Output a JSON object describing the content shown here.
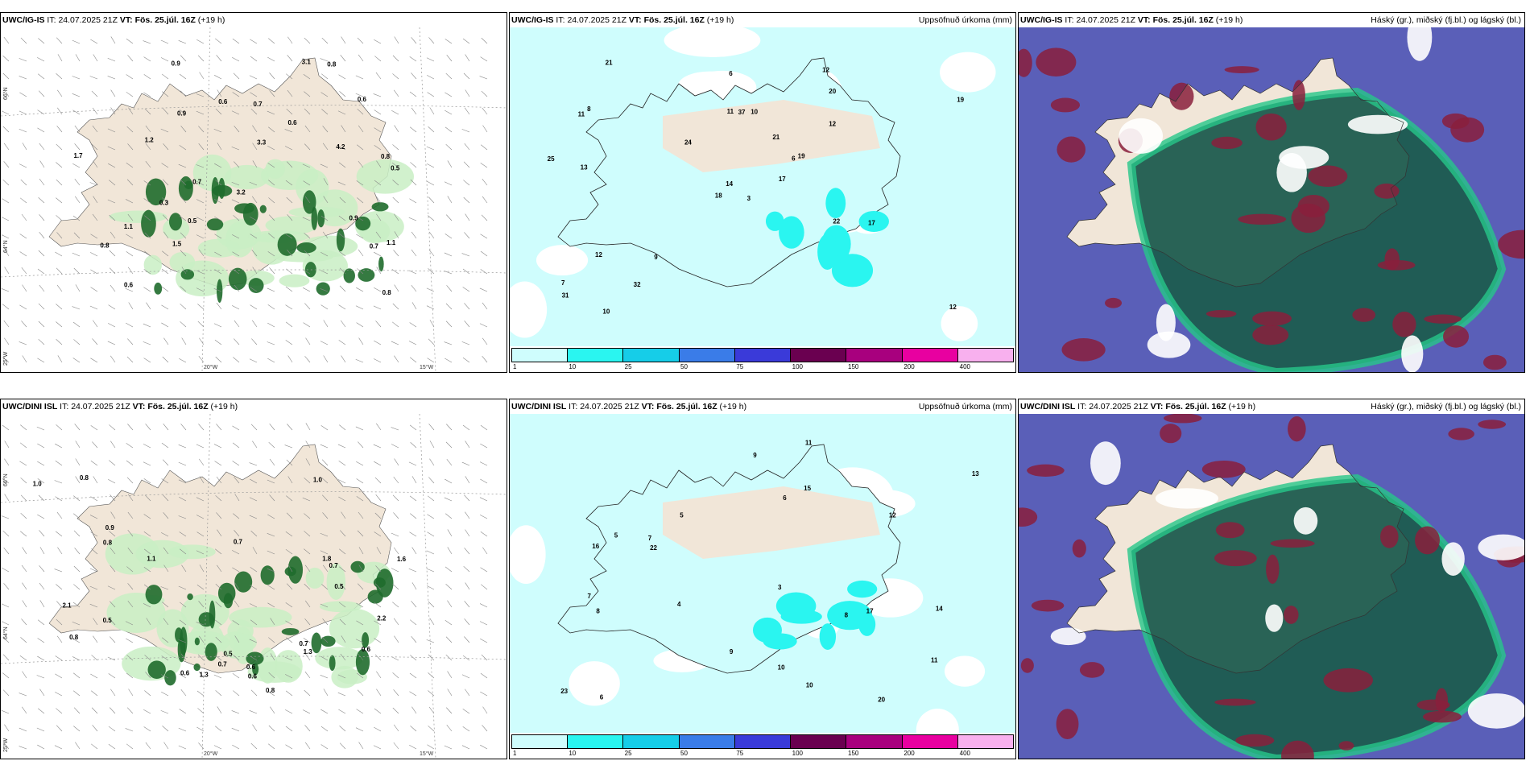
{
  "rows": [
    {
      "model": "UWC/IG-IS",
      "it_label": "IT:",
      "it": "24.07.2025 21Z",
      "vt_label": "VT:",
      "vt": "Fös. 25.júl. 16Z",
      "lead": "(+19 h)"
    },
    {
      "model": "UWC/DINI ISL",
      "it_label": "IT:",
      "it": "24.07.2025 21Z",
      "vt_label": "VT:",
      "vt": "Fös. 25.júl. 16Z",
      "lead": "(+19 h)"
    }
  ],
  "precip_title": "Uppsöfnuð úrkoma (mm)",
  "cloud_title": "Háský (gr.), miðský (fj.bl.) og lágský (bl.)",
  "colorbar": {
    "ticks": [
      "1",
      "10",
      "25",
      "50",
      "75",
      "100",
      "150",
      "200",
      "400"
    ],
    "colors": [
      "#cffdfd",
      "#2af5f0",
      "#16cde8",
      "#3a7ce8",
      "#3a3ad9",
      "#6a0050",
      "#a8007e",
      "#e800a0",
      "#f8b0ee"
    ]
  },
  "axes": {
    "lat_66": "66°N",
    "lat_64": "64°N",
    "lon_25": "25°W",
    "lon_20": "20°W",
    "lon_15": "15°W"
  },
  "colors": {
    "land": "#f1e6d8",
    "precip_light": "#cffdfd",
    "precip_mid": "#2af5f0",
    "green_light": "#c9efc4",
    "green_dark": "#1f6b2c",
    "cloud_dark": "#1e5c4f",
    "cloud_green": "#27c78a",
    "cloud_maroon": "#8a1e3c",
    "cloud_blue": "#6666cc"
  },
  "labels": {
    "p1": [
      "0.9",
      "0.8",
      "0.6",
      "0.5",
      "0.7",
      "1.1",
      "0.5",
      "3.1",
      "0.7",
      "0.6",
      "1.2",
      "0.9",
      "4.2",
      "1.5",
      "0.8",
      "3.2",
      "0.3",
      "1.7",
      "0.9",
      "0.6",
      "0.8",
      "0.7",
      "0.6",
      "1.1",
      "3.3",
      "0.8"
    ],
    "p2": [
      "3",
      "11",
      "14",
      "7",
      "6",
      "9",
      "12",
      "10",
      "20",
      "17",
      "21",
      "12",
      "13",
      "19",
      "18",
      "12",
      "10",
      "11",
      "21",
      "12",
      "24",
      "31",
      "32",
      "37",
      "19",
      "17",
      "8",
      "6",
      "25",
      "22"
    ],
    "p4": [
      "0.6",
      "0.5",
      "0.7",
      "1.0",
      "1.6",
      "0.8",
      "0.7",
      "2.1",
      "1.8",
      "0.9",
      "0.5",
      "0.6",
      "1.3",
      "0.8",
      "1.0",
      "0.6",
      "0.7",
      "1.3",
      "2.2",
      "0.7",
      "0.8",
      "0.5",
      "0.8",
      "1.1",
      "0.6"
    ],
    "p5": [
      "6",
      "8",
      "4",
      "7",
      "5",
      "9",
      "12",
      "11",
      "10",
      "14",
      "16",
      "13",
      "20",
      "22",
      "23",
      "17",
      "15",
      "8",
      "6",
      "9",
      "3",
      "5",
      "7",
      "11",
      "10"
    ]
  }
}
